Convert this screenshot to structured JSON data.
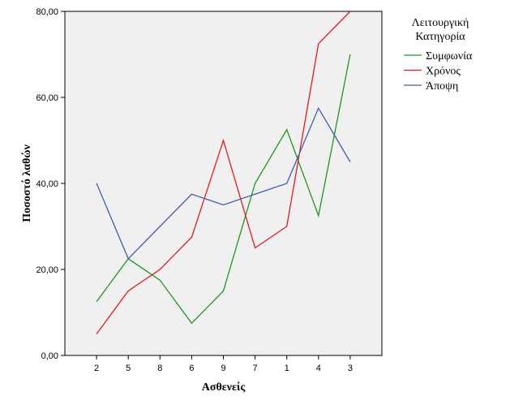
{
  "chart_data": {
    "type": "line",
    "title": "",
    "xlabel": "Ασθενείς",
    "ylabel": "Ποσοστό λαθών",
    "categories": [
      "2",
      "5",
      "8",
      "6",
      "9",
      "7",
      "1",
      "4",
      "3"
    ],
    "ylim": [
      0,
      80
    ],
    "yticks": [
      "0,00",
      "20,00",
      "40,00",
      "60,00",
      "80,00"
    ],
    "ytick_values": [
      0,
      20,
      40,
      60,
      80
    ],
    "grid": false,
    "legend": {
      "placement": "right",
      "title_lines": [
        "Λειτουργική",
        "Κατηγορία"
      ]
    },
    "series": [
      {
        "name": "Συμφωνία",
        "color": "#1a9a1a",
        "values": [
          12.5,
          22.5,
          17.5,
          7.5,
          15,
          40,
          52.5,
          32.5,
          70
        ]
      },
      {
        "name": "Χρόνος",
        "color": "#e31a1c",
        "values": [
          5,
          15,
          20,
          27.5,
          50,
          25,
          30,
          72.5,
          80
        ]
      },
      {
        "name": "Άποψη",
        "color": "#3f5fb0",
        "values": [
          40,
          22.5,
          30,
          37.5,
          35,
          37.5,
          40,
          57.5,
          45
        ]
      }
    ]
  },
  "colors": {
    "plot_background": "#f0f0f0",
    "axis": "#000000"
  }
}
